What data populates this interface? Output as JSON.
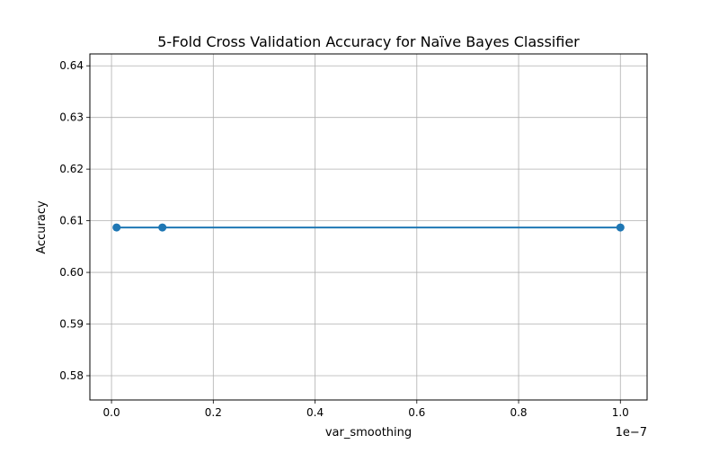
{
  "chart_data": {
    "type": "line",
    "title": "5-Fold Cross Validation Accuracy for Naïve Bayes Classifier",
    "xlabel": "var_smoothing",
    "ylabel": "Accuracy",
    "x_offset_label": "1e−7",
    "xlim": [
      -0.0425,
      1.0525
    ],
    "ylim": [
      0.5753,
      0.6423
    ],
    "x_ticks": [
      0.0,
      0.2,
      0.4,
      0.6,
      0.8,
      1.0
    ],
    "x_tick_labels": [
      "0.0",
      "0.2",
      "0.4",
      "0.6",
      "0.8",
      "1.0"
    ],
    "y_ticks": [
      0.58,
      0.59,
      0.6,
      0.61,
      0.62,
      0.63,
      0.64
    ],
    "y_tick_labels": [
      "0.58",
      "0.59",
      "0.60",
      "0.61",
      "0.62",
      "0.63",
      "0.64"
    ],
    "grid": true,
    "series": [
      {
        "color": "#1f77b4",
        "marker": "circle",
        "x": [
          0.01,
          0.1,
          1.0
        ],
        "y": [
          0.6087,
          0.6087,
          0.6087
        ]
      }
    ]
  }
}
